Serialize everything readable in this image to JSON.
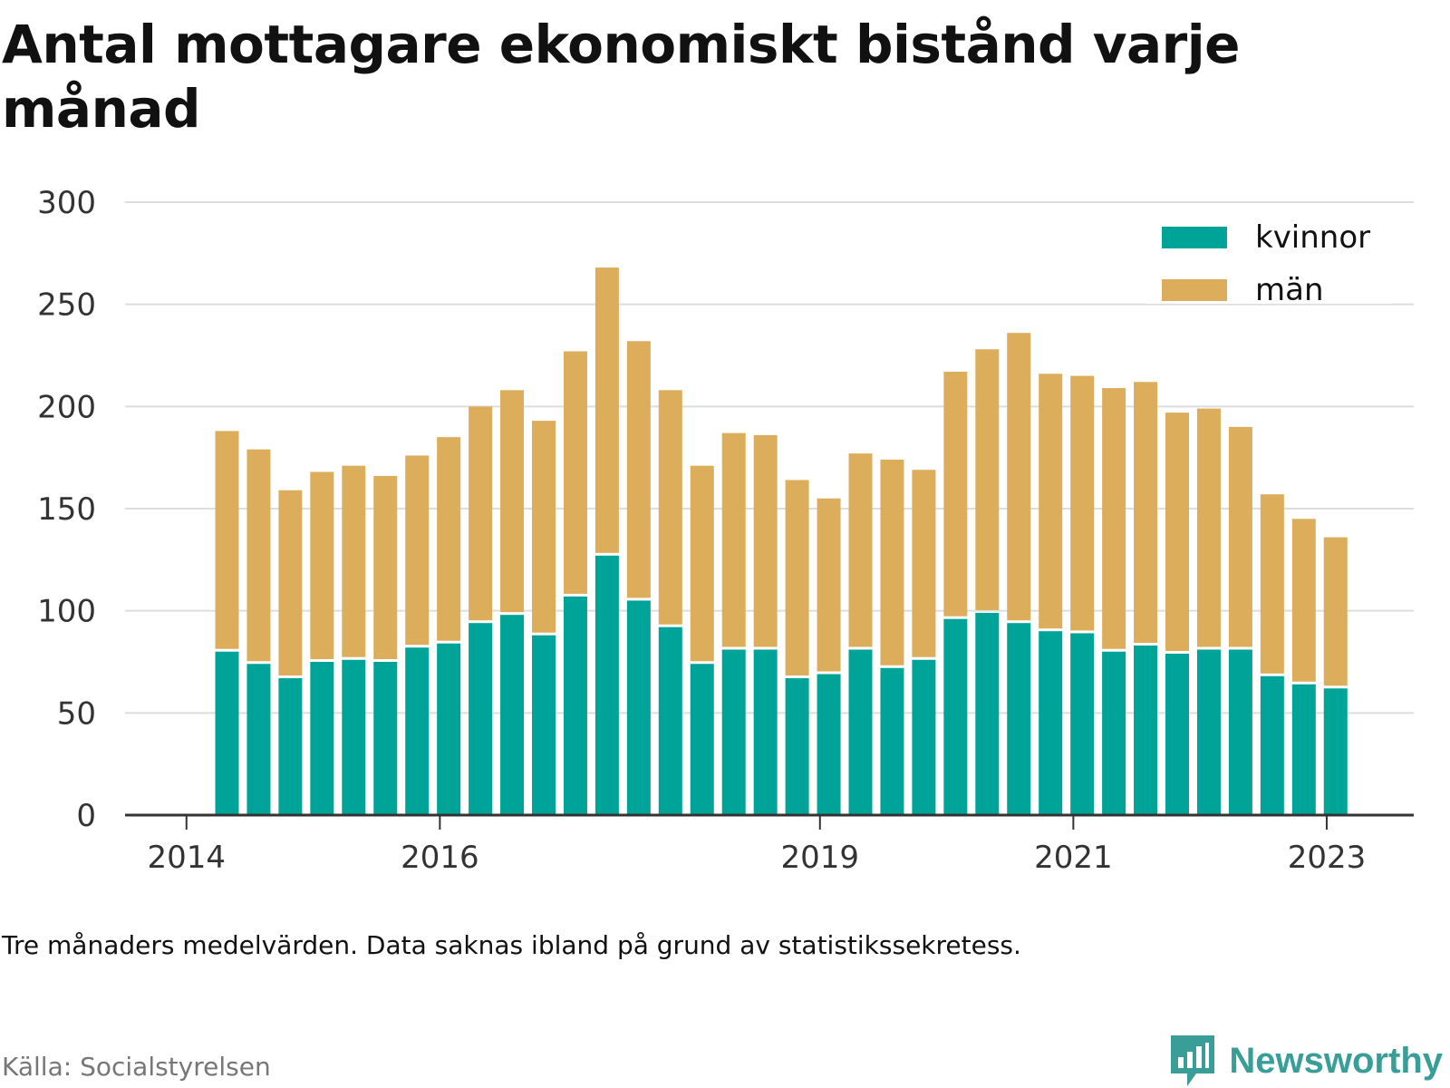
{
  "title": "Antal mottagare ekonomiskt bistånd varje månad",
  "note": "Tre månaders medelvärden. Data saknas ibland på grund av statistikssekretess.",
  "source": "Källa: Socialstyrelsen",
  "brand": "Newsworthy",
  "colors": {
    "kvinnor": "#00a397",
    "man": "#dcae5c",
    "grid": "#dddddd",
    "axis": "#333333",
    "brand": "#3a9e98"
  },
  "chart_data": {
    "type": "bar",
    "stacked": true,
    "x_ticks": [
      "2014",
      "2016",
      "2019",
      "2021",
      "2023"
    ],
    "ylim": [
      0,
      300
    ],
    "y_ticks": [
      0,
      50,
      100,
      150,
      200,
      250,
      300
    ],
    "grid": true,
    "legend_position": "top-right",
    "series": [
      {
        "name": "kvinnor",
        "values": [
          80,
          74,
          67,
          75,
          76,
          75,
          82,
          84,
          94,
          98,
          88,
          107,
          127,
          105,
          92,
          74,
          81,
          81,
          67,
          69,
          81,
          72,
          76,
          96,
          99,
          94,
          90,
          89,
          80,
          83,
          79,
          81,
          81,
          68,
          64,
          62
        ]
      },
      {
        "name": "män",
        "values": [
          108,
          105,
          92,
          93,
          95,
          91,
          94,
          101,
          106,
          110,
          105,
          120,
          141,
          127,
          116,
          97,
          106,
          105,
          97,
          86,
          96,
          102,
          93,
          121,
          129,
          142,
          126,
          126,
          129,
          129,
          118,
          118,
          109,
          89,
          81,
          74
        ]
      }
    ]
  }
}
